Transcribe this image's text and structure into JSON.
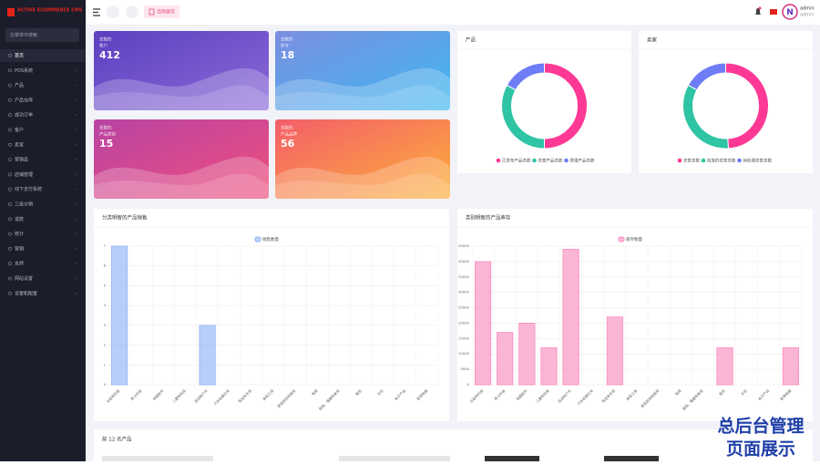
{
  "header": {
    "logo": "ACTIVE ECOMMERCE CMS",
    "button": "清除缓存",
    "user_name": "admin",
    "user_role": "admin"
  },
  "sidebar": {
    "search": "在菜单中搜索",
    "menu": [
      "首页",
      "POS系统",
      "产品",
      "产品仓库",
      "成功订单",
      "客户",
      "卖家",
      "营销品",
      "店铺管理",
      "线下支付系统",
      "三级分销",
      "退款",
      "统计",
      "营销",
      "支持",
      "网站设置",
      "设置和配置"
    ]
  },
  "stats": [
    {
      "caption": "总数的",
      "label": "客户",
      "value": 412
    },
    {
      "caption": "总数的",
      "label": "命令",
      "value": 18
    },
    {
      "caption": "总数的",
      "label": "产品类别",
      "value": 15
    },
    {
      "caption": "总数的",
      "label": "产品品牌",
      "value": 56
    }
  ],
  "chart_data": [
    {
      "type": "donut",
      "title": "产品",
      "categories": [
        "已发布产品总数",
        "卖家产品总数",
        "管理产品总数"
      ],
      "values": [
        50,
        33,
        17
      ],
      "colors": [
        "#fd3995",
        "#2fc4a3",
        "#6e7cf6"
      ]
    },
    {
      "type": "donut",
      "title": "卖家",
      "categories": [
        "卖家总数",
        "批准的卖家总数",
        "待处理卖家总数"
      ],
      "values": [
        49,
        34,
        17
      ],
      "colors": [
        "#fd3995",
        "#2fc4a3",
        "#6e7cf6"
      ]
    },
    {
      "type": "bar",
      "title": "分类明智的产品销售",
      "categories": [
        "女装和时装",
        "男士时装",
        "电脑配件",
        "儿童和玩具",
        "运动和户外",
        "汽车和摩托车",
        "珠宝和手表",
        "美容工具",
        "家居装饰和厨房",
        "电视",
        "智能、健康和美发",
        "鞋包",
        "手机",
        "电子产品",
        "家用电器"
      ],
      "series": [
        {
          "name": "销售数量",
          "color": "#8fb4f5",
          "values": [
            7,
            0,
            0,
            0,
            3,
            0,
            0,
            0,
            0,
            0,
            0,
            0,
            0,
            0,
            0
          ]
        }
      ],
      "ylim": [
        0,
        7
      ],
      "yticks": [
        0,
        1,
        2,
        3,
        4,
        5,
        6,
        7
      ],
      "grid": true
    },
    {
      "type": "bar",
      "title": "类别明智的产品库存",
      "categories": [
        "女装和时装",
        "男士时装",
        "电脑配件",
        "儿童和玩具",
        "运动和户外",
        "汽车和摩托车",
        "珠宝和手表",
        "美容工具",
        "家居装饰和厨房",
        "电视",
        "智能、健康和美发",
        "鞋包",
        "手机",
        "电子产品",
        "家用电器"
      ],
      "series": [
        {
          "name": "库存数量",
          "color": "#f98dbf",
          "values": [
            40000,
            17000,
            20000,
            12000,
            44000,
            0,
            22000,
            0,
            0,
            0,
            0,
            12000,
            0,
            0,
            12000
          ]
        }
      ],
      "ylim": [
        0,
        45000
      ],
      "yticks": [
        0,
        5000,
        10000,
        15000,
        20000,
        25000,
        30000,
        35000,
        40000,
        45000
      ],
      "grid": true
    }
  ],
  "top_products_title": "前 12 名产品",
  "watermark": [
    "总后台管理",
    "页面展示"
  ]
}
